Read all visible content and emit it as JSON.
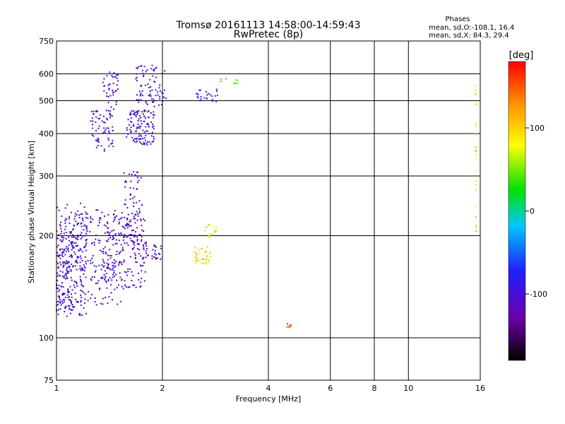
{
  "chart_data": {
    "type": "scatter",
    "title": "Tromsø 20161113 14:58:00-14:59:43",
    "subtitle": "RwPretec (8p)",
    "stats": {
      "heading": "Phases",
      "line_o": "mean, sd,O:-108.1, 16.4",
      "line_x": "mean, sd,X: 84.3, 29.4"
    },
    "xlabel": "Frequency [MHz]",
    "ylabel": "Stationary phase Virtual Height [km]",
    "x_scale": "log",
    "y_scale": "log",
    "xlim": [
      1,
      16
    ],
    "ylim": [
      75,
      750
    ],
    "x_ticks": [
      1,
      2,
      4,
      6,
      8,
      10,
      16
    ],
    "x_tick_labels": [
      "1",
      "2",
      "4",
      "6",
      "8",
      "10",
      "16"
    ],
    "y_ticks": [
      75,
      100,
      200,
      300,
      400,
      500,
      600,
      750
    ],
    "y_tick_labels": [
      "75",
      "100",
      "200",
      "300",
      "400",
      "500",
      "600",
      "750"
    ],
    "grid": true,
    "colorbar": {
      "label": "[deg]",
      "range": [
        -180,
        180
      ],
      "ticks": [
        100,
        0,
        -100
      ],
      "tick_labels": [
        "100",
        "0",
        "-100"
      ],
      "colors": [
        "#000000",
        "#6b00a8",
        "#2020ff",
        "#00c8ff",
        "#00e000",
        "#ffff00",
        "#ff9000",
        "#ff0000"
      ]
    },
    "series": [
      {
        "clusters": [
          {
            "x": [
              1.0,
              1.22
            ],
            "y": [
              115,
              250
            ],
            "phase": -100,
            "n": 180
          },
          {
            "x": [
              1.0,
              1.12
            ],
            "y": [
              120,
              210
            ],
            "phase": -105,
            "n": 120
          },
          {
            "x": [
              1.1,
              1.55
            ],
            "y": [
              125,
              240
            ],
            "phase": -105,
            "n": 200
          },
          {
            "x": [
              1.35,
              1.8
            ],
            "y": [
              140,
              230
            ],
            "phase": -110,
            "n": 160
          },
          {
            "x": [
              1.55,
              1.75
            ],
            "y": [
              190,
              310
            ],
            "phase": -110,
            "n": 70
          },
          {
            "x": [
              1.65,
              2.0
            ],
            "y": [
              170,
              190
            ],
            "phase": -115,
            "n": 40
          },
          {
            "x": [
              1.25,
              1.45
            ],
            "y": [
              355,
              470
            ],
            "phase": -100,
            "n": 70
          },
          {
            "x": [
              1.35,
              1.5
            ],
            "y": [
              470,
              610
            ],
            "phase": -100,
            "n": 40
          },
          {
            "x": [
              1.58,
              1.9
            ],
            "y": [
              370,
              470
            ],
            "phase": -100,
            "n": 120
          },
          {
            "x": [
              1.68,
              2.05
            ],
            "y": [
              480,
              640
            ],
            "phase": -100,
            "n": 80
          },
          {
            "x": [
              2.5,
              2.9
            ],
            "y": [
              495,
              540
            ],
            "phase": -90,
            "n": 25
          },
          {
            "x": [
              2.9,
              3.3
            ],
            "y": [
              555,
              585
            ],
            "phase": 40,
            "n": 8
          },
          {
            "x": [
              2.45,
              2.75
            ],
            "y": [
              165,
              185
            ],
            "phase": 100,
            "n": 35
          },
          {
            "x": [
              2.6,
              2.85
            ],
            "y": [
              195,
              215
            ],
            "phase": 70,
            "n": 15
          },
          {
            "x": [
              4.5,
              4.65
            ],
            "y": [
              107,
              110
            ],
            "phase": 150,
            "n": 8
          },
          {
            "x": [
              15.5,
              15.6
            ],
            "y": [
              200,
              600
            ],
            "phase": 100,
            "n": 25
          }
        ]
      }
    ]
  }
}
